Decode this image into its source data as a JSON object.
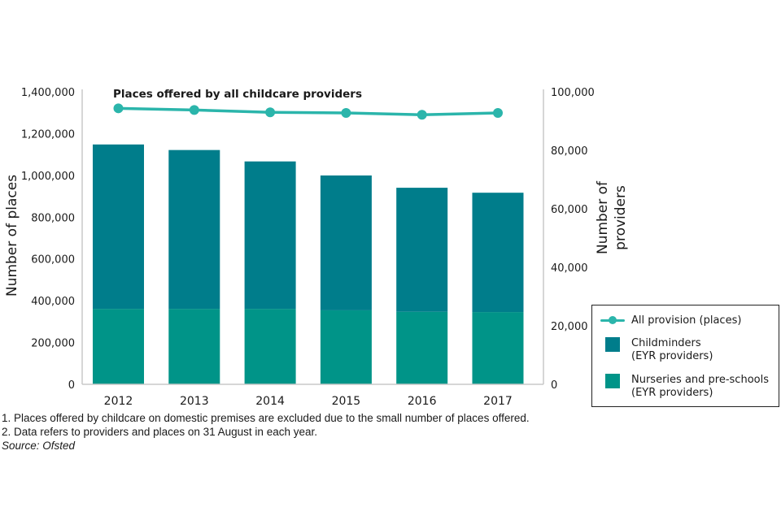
{
  "chart_data": {
    "type": "bar",
    "subtype": "stacked-bar-with-line-secondary",
    "title": "Places offered by all childcare providers",
    "categories": [
      "2012",
      "2013",
      "2014",
      "2015",
      "2016",
      "2017"
    ],
    "series": [
      {
        "name": "Nurseries and pre-schools (EYR providers)",
        "type": "bar",
        "axis": "right",
        "color": "#009488",
        "values": [
          25800,
          25800,
          25800,
          25300,
          24800,
          24700
        ]
      },
      {
        "name": "Childminders (EYR providers)",
        "type": "bar",
        "axis": "right",
        "color": "#007d8b",
        "values": [
          56200,
          54300,
          50400,
          46100,
          42400,
          40800
        ]
      },
      {
        "name": "All provision (places)",
        "type": "line",
        "axis": "left",
        "color": "#2bb5ab",
        "values": [
          1321000,
          1313000,
          1302000,
          1299000,
          1290000,
          1299000
        ]
      }
    ],
    "left_axis": {
      "label": "Number of places",
      "ylim": [
        0,
        1400000
      ],
      "ticks": [
        0,
        200000,
        400000,
        600000,
        800000,
        1000000,
        1200000,
        1400000
      ],
      "tick_labels": [
        "0",
        "200,000",
        "400,000",
        "600,000",
        "800,000",
        "1,000,000",
        "1,200,000",
        "1,400,000"
      ]
    },
    "right_axis": {
      "label_lines": [
        "Number of",
        "providers"
      ],
      "ylim": [
        0,
        100000
      ],
      "ticks": [
        0,
        20000,
        40000,
        60000,
        80000,
        100000
      ],
      "tick_labels": [
        "0",
        "20,000",
        "40,000",
        "60,000",
        "80,000",
        "100,000"
      ]
    },
    "xlabel": "",
    "grid": false,
    "legend_position": "right"
  },
  "legend": {
    "items": [
      {
        "label_lines": [
          "All provision (places)"
        ],
        "kind": "line",
        "color": "#2bb5ab"
      },
      {
        "label_lines": [
          "Childminders",
          "(EYR providers)"
        ],
        "kind": "swatch",
        "color": "#007d8b"
      },
      {
        "label_lines": [
          "Nurseries and pre-schools",
          "(EYR providers)"
        ],
        "kind": "swatch",
        "color": "#009488"
      }
    ]
  },
  "footnotes": {
    "note1": "1. Places offered by childcare on domestic premises are excluded due to the small number of places offered.",
    "note2": "2. Data refers to providers and places on 31 August in each year.",
    "source": "Source: Ofsted"
  }
}
